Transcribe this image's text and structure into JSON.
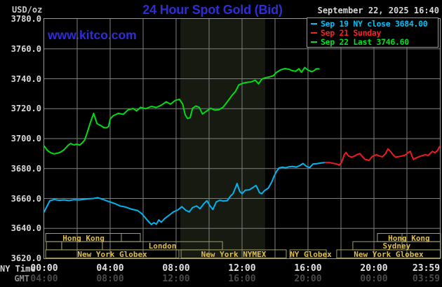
{
  "header": {
    "units_label": "USD/oz",
    "title": "24 Hour Spot Gold (Bid)",
    "datetime": "September 22, 2025 16:40",
    "watermark": "www.kitco.com"
  },
  "colors": {
    "background": "#000000",
    "grid": "#7f7f7f",
    "frame": "#9a9a9a",
    "title_blue": "#2e2ed8",
    "session_box_border": "#a0a060",
    "session_label_gold": "#e0be4a",
    "nymex_band": "#161a10",
    "series_friday_cyan": "#00b4f0",
    "series_sunday_red": "#f21b1b",
    "series_today_green": "#00dc14"
  },
  "legend": [
    {
      "label": "Sep 19 NY close 3684.00",
      "color": "#00c0f8"
    },
    {
      "label": "Sep 21 Sunday",
      "color": "#ff2020"
    },
    {
      "label": "Sep 22 Last 3746.60",
      "color": "#00e020"
    }
  ],
  "axes": {
    "ny_row_label": "NY Time",
    "gmt_row_label": "GMT",
    "y_ticks": [
      "3780.0",
      "3760.0",
      "3740.0",
      "3720.0",
      "3700.0",
      "3680.0",
      "3660.0",
      "3640.0",
      "3620.0"
    ],
    "x_ticks": [
      {
        "hour": 0,
        "ny": "00:00",
        "gmt": "04:00"
      },
      {
        "hour": 4,
        "ny": "04:00",
        "gmt": "08:00"
      },
      {
        "hour": 8,
        "ny": "08:00",
        "gmt": "12:00"
      },
      {
        "hour": 12,
        "ny": "12:00",
        "gmt": "16:00"
      },
      {
        "hour": 16,
        "ny": "16:00",
        "gmt": "20:00"
      },
      {
        "hour": 20,
        "ny": "20:00",
        "gmt": "00:00"
      },
      {
        "hour": 23.983,
        "ny": "23:59",
        "gmt": "03:59"
      }
    ]
  },
  "sessions": [
    {
      "row": 0,
      "h1": 0.09,
      "h2": 4.68,
      "label": "Hong Kong",
      "dividers": []
    },
    {
      "row": 0,
      "h1": 4.68,
      "h2": 5.83,
      "label": "",
      "dividers": []
    },
    {
      "row": 0,
      "h1": 20.21,
      "h2": 24.04,
      "label": "Hong Kong",
      "dividers": [
        21.7
      ]
    },
    {
      "row": 1,
      "h1": 0.13,
      "h2": 1.06,
      "label": "",
      "dividers": []
    },
    {
      "row": 1,
      "h1": 1.06,
      "h2": 3.53,
      "label": "",
      "dividers": []
    },
    {
      "row": 1,
      "h1": 3.53,
      "h2": 10.81,
      "label": "London",
      "dividers": []
    },
    {
      "row": 1,
      "h1": 18.72,
      "h2": 24.04,
      "label": "Sydney",
      "dividers": [
        21.7
      ]
    },
    {
      "row": 2,
      "h1": 0.09,
      "h2": 8.17,
      "label": "New York Globex",
      "dividers": []
    },
    {
      "row": 2,
      "h1": 8.3,
      "h2": 14.68,
      "label": "New York NYMEX",
      "dividers": []
    },
    {
      "row": 2,
      "h1": 14.9,
      "h2": 17.11,
      "label": "NY Globex",
      "dividers": []
    },
    {
      "row": 2,
      "h1": 17.74,
      "h2": 24.04,
      "label": "New York Globex",
      "dividers": []
    }
  ],
  "chart_data": {
    "type": "line",
    "title": "24 Hour Spot Gold (Bid)",
    "ylabel": "USD/oz",
    "x_axis": {
      "label": "NY Time",
      "range_hours": [
        0,
        24
      ],
      "gridline_step_hours": 2
    },
    "y_axis": {
      "range": [
        3620,
        3780
      ],
      "tick_step": 20,
      "grid": true
    },
    "nymex_floor_band_hours": [
      8.26,
      13.4
    ],
    "series": [
      {
        "name": "Sep 19 NY close 3684.00",
        "color": "#00b4f0",
        "points": [
          [
            0,
            3651
          ],
          [
            0.2,
            3655.5
          ],
          [
            0.35,
            3658.5
          ],
          [
            0.6,
            3659.3
          ],
          [
            0.9,
            3658.8
          ],
          [
            1.2,
            3659
          ],
          [
            1.5,
            3658.6
          ],
          [
            1.8,
            3659.2
          ],
          [
            2.1,
            3659
          ],
          [
            2.4,
            3659.4
          ],
          [
            2.7,
            3659.8
          ],
          [
            3.0,
            3660
          ],
          [
            3.25,
            3660.5
          ],
          [
            3.6,
            3659.2
          ],
          [
            3.9,
            3658
          ],
          [
            4.3,
            3656.5
          ],
          [
            4.6,
            3655
          ],
          [
            4.95,
            3654.2
          ],
          [
            5.3,
            3652.8
          ],
          [
            5.65,
            3652
          ],
          [
            5.9,
            3650
          ],
          [
            6.1,
            3647.5
          ],
          [
            6.3,
            3644.9
          ],
          [
            6.5,
            3642.6
          ],
          [
            6.65,
            3643.8
          ],
          [
            6.8,
            3642.8
          ],
          [
            6.95,
            3645.7
          ],
          [
            7.1,
            3644.1
          ],
          [
            7.3,
            3646.5
          ],
          [
            7.6,
            3649
          ],
          [
            7.85,
            3651.1
          ],
          [
            8.1,
            3652.3
          ],
          [
            8.35,
            3654.5
          ],
          [
            8.6,
            3652
          ],
          [
            8.8,
            3651
          ],
          [
            9.0,
            3653.9
          ],
          [
            9.25,
            3655
          ],
          [
            9.45,
            3653.1
          ],
          [
            9.66,
            3656.2
          ],
          [
            9.87,
            3658.5
          ],
          [
            10.08,
            3654.6
          ],
          [
            10.23,
            3652.6
          ],
          [
            10.44,
            3657.7
          ],
          [
            10.65,
            3658.8
          ],
          [
            10.9,
            3658.2
          ],
          [
            11.1,
            3658.5
          ],
          [
            11.3,
            3661.6
          ],
          [
            11.45,
            3663.2
          ],
          [
            11.6,
            3667.1
          ],
          [
            11.7,
            3670
          ],
          [
            11.86,
            3664.7
          ],
          [
            12.0,
            3663.2
          ],
          [
            12.2,
            3665.5
          ],
          [
            12.45,
            3665.8
          ],
          [
            12.85,
            3668.7
          ],
          [
            13.06,
            3663.9
          ],
          [
            13.2,
            3663.2
          ],
          [
            13.35,
            3665.1
          ],
          [
            13.6,
            3667
          ],
          [
            13.8,
            3671
          ],
          [
            13.95,
            3675
          ],
          [
            14.1,
            3678.3
          ],
          [
            14.25,
            3680.4
          ],
          [
            14.45,
            3680.9
          ],
          [
            14.65,
            3680.5
          ],
          [
            14.85,
            3681.2
          ],
          [
            15.05,
            3681.4
          ],
          [
            15.3,
            3681
          ],
          [
            15.5,
            3682
          ],
          [
            15.7,
            3683.4
          ],
          [
            15.9,
            3681.5
          ],
          [
            16.1,
            3680.6
          ],
          [
            16.3,
            3683
          ],
          [
            16.55,
            3683.3
          ],
          [
            16.8,
            3683.7
          ],
          [
            17.0,
            3684
          ]
        ]
      },
      {
        "name": "Sep 21 Sunday",
        "color": "#f21b1b",
        "points": [
          [
            17.05,
            3684
          ],
          [
            17.3,
            3684
          ],
          [
            17.55,
            3683.5
          ],
          [
            17.75,
            3683
          ],
          [
            17.9,
            3682.2
          ],
          [
            18.05,
            3684.5
          ],
          [
            18.2,
            3689.2
          ],
          [
            18.3,
            3690.8
          ],
          [
            18.45,
            3688.4
          ],
          [
            18.65,
            3687.6
          ],
          [
            18.85,
            3688.5
          ],
          [
            19.0,
            3689.5
          ],
          [
            19.15,
            3690
          ],
          [
            19.3,
            3688
          ],
          [
            19.45,
            3686.1
          ],
          [
            19.6,
            3685.8
          ],
          [
            19.7,
            3685.3
          ],
          [
            19.85,
            3687.5
          ],
          [
            19.95,
            3688.4
          ],
          [
            20.15,
            3689.2
          ],
          [
            20.3,
            3688.5
          ],
          [
            20.5,
            3687.8
          ],
          [
            20.7,
            3690
          ],
          [
            20.85,
            3693.1
          ],
          [
            21.0,
            3691.5
          ],
          [
            21.1,
            3690
          ],
          [
            21.3,
            3687.6
          ],
          [
            21.5,
            3688
          ],
          [
            21.7,
            3688.4
          ],
          [
            21.9,
            3689
          ],
          [
            22.05,
            3690.5
          ],
          [
            22.2,
            3691.5
          ],
          [
            22.3,
            3688.5
          ],
          [
            22.4,
            3686.1
          ],
          [
            22.55,
            3687
          ],
          [
            22.7,
            3687.8
          ],
          [
            22.9,
            3688.5
          ],
          [
            23.1,
            3689.2
          ],
          [
            23.3,
            3688.8
          ],
          [
            23.55,
            3691.5
          ],
          [
            23.7,
            3690.5
          ],
          [
            23.85,
            3692
          ],
          [
            23.98,
            3694.6
          ]
        ]
      },
      {
        "name": "Sep 22 Last 3746.60",
        "color": "#00dc14",
        "points": [
          [
            0,
            3695
          ],
          [
            0.2,
            3692
          ],
          [
            0.4,
            3690.5
          ],
          [
            0.6,
            3689.8
          ],
          [
            0.8,
            3690.2
          ],
          [
            1.0,
            3691
          ],
          [
            1.2,
            3692.5
          ],
          [
            1.45,
            3695.5
          ],
          [
            1.6,
            3696.7
          ],
          [
            1.8,
            3695.8
          ],
          [
            2.0,
            3696.3
          ],
          [
            2.15,
            3695.6
          ],
          [
            2.3,
            3697
          ],
          [
            2.45,
            3699
          ],
          [
            2.6,
            3703.7
          ],
          [
            2.8,
            3710.7
          ],
          [
            3.0,
            3716.9
          ],
          [
            3.2,
            3710
          ],
          [
            3.4,
            3708.9
          ],
          [
            3.6,
            3707.5
          ],
          [
            3.75,
            3707.2
          ],
          [
            3.9,
            3708
          ],
          [
            4.0,
            3713.1
          ],
          [
            4.2,
            3715.4
          ],
          [
            4.5,
            3716.9
          ],
          [
            4.8,
            3716.2
          ],
          [
            5.1,
            3719.3
          ],
          [
            5.4,
            3720.1
          ],
          [
            5.6,
            3718.5
          ],
          [
            5.85,
            3720.9
          ],
          [
            6.15,
            3720
          ],
          [
            6.5,
            3721.5
          ],
          [
            6.8,
            3720.8
          ],
          [
            7.1,
            3722.3
          ],
          [
            7.4,
            3724.6
          ],
          [
            7.65,
            3723
          ],
          [
            7.95,
            3725.5
          ],
          [
            8.2,
            3726.3
          ],
          [
            8.4,
            3723
          ],
          [
            8.55,
            3716
          ],
          [
            8.7,
            3713.4
          ],
          [
            8.85,
            3714
          ],
          [
            9.0,
            3720.3
          ],
          [
            9.2,
            3721.8
          ],
          [
            9.4,
            3720.9
          ],
          [
            9.6,
            3716.4
          ],
          [
            9.8,
            3718
          ],
          [
            10.1,
            3720.3
          ],
          [
            10.35,
            3719
          ],
          [
            10.6,
            3719.3
          ],
          [
            10.85,
            3721
          ],
          [
            11.1,
            3724.5
          ],
          [
            11.4,
            3729
          ],
          [
            11.6,
            3731.5
          ],
          [
            11.8,
            3735.9
          ],
          [
            12.05,
            3737
          ],
          [
            12.3,
            3737.6
          ],
          [
            12.55,
            3737.9
          ],
          [
            12.8,
            3739
          ],
          [
            13.0,
            3736.6
          ],
          [
            13.2,
            3739.8
          ],
          [
            13.45,
            3740.8
          ],
          [
            13.7,
            3741.3
          ],
          [
            13.9,
            3742.1
          ],
          [
            14.1,
            3744.4
          ],
          [
            14.35,
            3746
          ],
          [
            14.6,
            3746.8
          ],
          [
            14.85,
            3746.3
          ],
          [
            15.05,
            3745.4
          ],
          [
            15.25,
            3745
          ],
          [
            15.45,
            3746.7
          ],
          [
            15.6,
            3744.3
          ],
          [
            15.8,
            3747.5
          ],
          [
            16.0,
            3745.8
          ],
          [
            16.2,
            3744.8
          ],
          [
            16.35,
            3745.2
          ],
          [
            16.5,
            3746.7
          ],
          [
            16.67,
            3746.6
          ]
        ]
      }
    ]
  }
}
